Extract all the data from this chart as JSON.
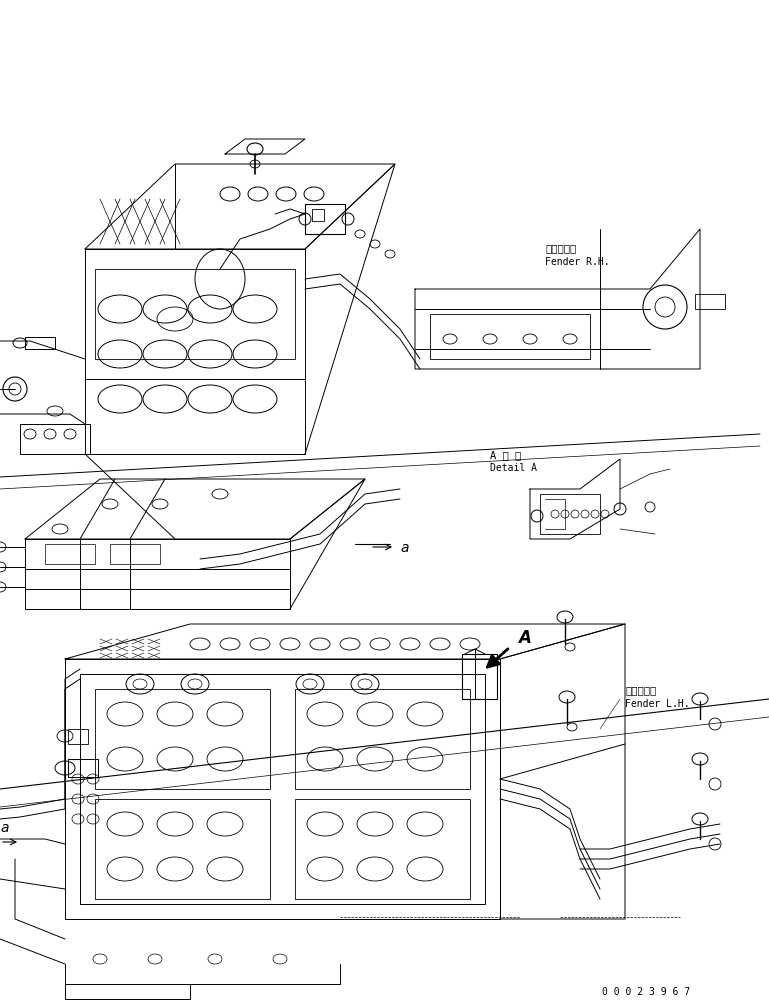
{
  "bg_color": "#ffffff",
  "line_color": "#000000",
  "fig_width": 7.69,
  "fig_height": 10.04,
  "dpi": 100,
  "labels": {
    "fender_rh_jp": "フェンダ右",
    "fender_rh_en": "Fender R.H.",
    "fender_lh_jp": "フェンダ左",
    "fender_lh_en": "Fender L.H.",
    "detail_jp": "A 詳 細",
    "detail_en": "Detail A",
    "label_a1": "a",
    "label_a2": "a",
    "label_A": "A",
    "part_no": "0 0 0 2 3 9 6 7"
  },
  "lw": 0.7
}
